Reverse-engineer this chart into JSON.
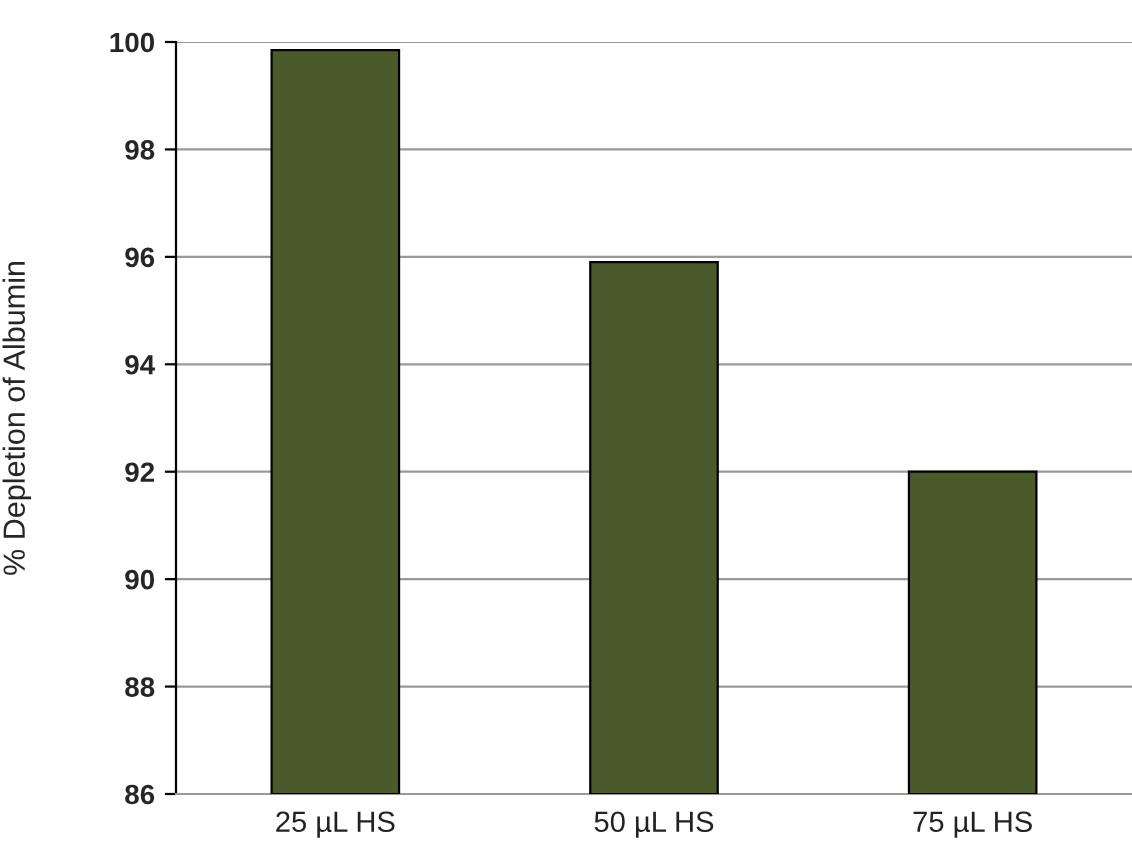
{
  "chart_data": {
    "type": "bar",
    "ylabel": "% Depletion of Albumin",
    "categories": [
      "25 µL HS",
      "50 µL HS",
      "75 µL HS"
    ],
    "values": [
      99.85,
      95.9,
      92.0
    ],
    "color": "#4a5a2a",
    "ylim": [
      86,
      100
    ],
    "yticks": [
      86,
      88,
      90,
      92,
      94,
      96,
      98,
      100
    ],
    "grid": "y"
  }
}
